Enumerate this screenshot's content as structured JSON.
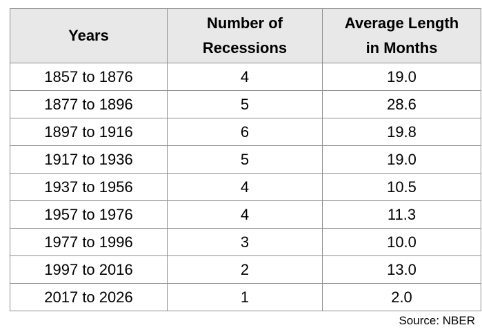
{
  "table": {
    "headers": [
      "Years",
      "Number of\nRecessions",
      "Average Length\nin Months"
    ],
    "rows": [
      [
        "1857 to 1876",
        "4",
        "19.0"
      ],
      [
        "1877 to 1896",
        "5",
        "28.6"
      ],
      [
        "1897 to 1916",
        "6",
        "19.8"
      ],
      [
        "1917 to 1936",
        "5",
        "19.0"
      ],
      [
        "1937 to 1956",
        "4",
        "10.5"
      ],
      [
        "1957 to 1976",
        "4",
        "11.3"
      ],
      [
        "1977 to 1996",
        "3",
        "10.0"
      ],
      [
        "1997 to 2016",
        "2",
        "13.0"
      ],
      [
        "2017 to 2026",
        "1",
        "2.0"
      ]
    ]
  },
  "source": "Source: NBER",
  "colors": {
    "header_bg": "#e8e8e8",
    "border": "#8c8c8c",
    "text": "#000000"
  }
}
